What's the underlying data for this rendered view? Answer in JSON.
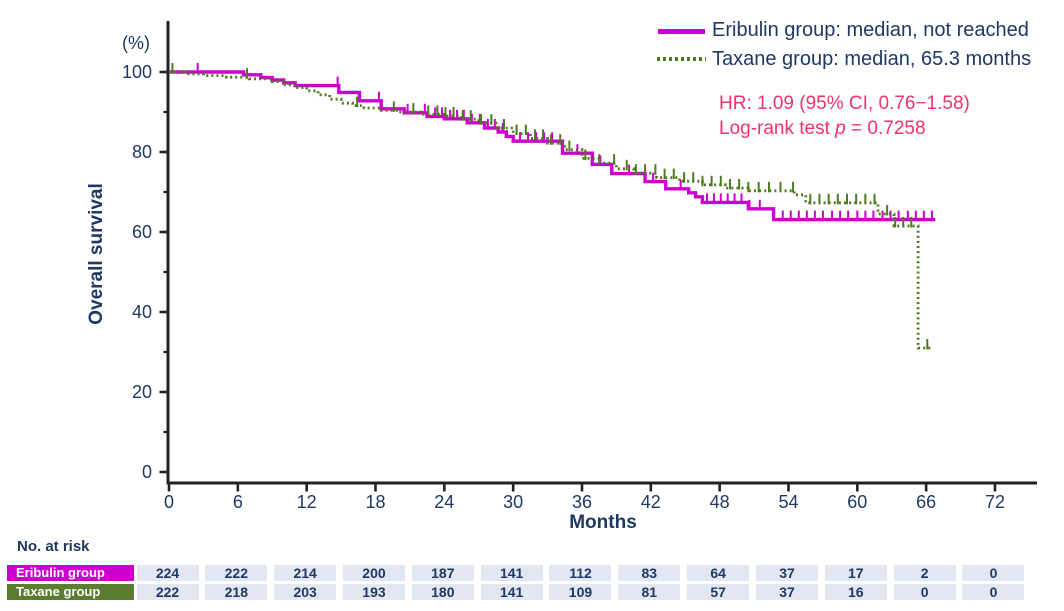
{
  "colors": {
    "eribulin": "#cc00cc",
    "taxane": "#4e7b1f",
    "taxane_pill": "#5b7d2f",
    "navy": "#1f3864",
    "pink": "#f0336b",
    "axis": "#222222",
    "cell_bg": "#e3e7f2"
  },
  "legend": {
    "entries": [
      {
        "label": "Eribulin group: median, not reached",
        "style": "solid"
      },
      {
        "label": "Taxane group: median, 65.3 months",
        "style": "dotted"
      }
    ]
  },
  "annotation": {
    "hr_line": "HR: 1.09 (95% CI, 0.76−1.58)",
    "logrank_prefix": "Log-rank test ",
    "logrank_p": "p",
    "logrank_suffix": " = 0.7258"
  },
  "axes": {
    "y_label": "Overall survival",
    "y_unit": "(%)",
    "x_label": "Months"
  },
  "chart_data": {
    "type": "line",
    "subtype": "kaplan-meier-step",
    "title": "",
    "xlabel": "Months",
    "ylabel": "Overall survival (%)",
    "xlim": [
      0,
      75.7
    ],
    "ylim": [
      0,
      100
    ],
    "x_ticks": [
      0,
      6,
      12,
      18,
      24,
      30,
      36,
      42,
      48,
      54,
      60,
      66,
      72
    ],
    "y_ticks": [
      0,
      20,
      40,
      60,
      80,
      100
    ],
    "y_minor_ticks": [
      10,
      30,
      50,
      70,
      90
    ],
    "grid": false,
    "legend_position": "top-right",
    "series": [
      {
        "name": "Eribulin group",
        "legend_label": "Eribulin group: median, not reached",
        "median": "not reached",
        "color": "#cc00cc",
        "line_style": "solid",
        "steps": [
          [
            0,
            100
          ],
          [
            6.5,
            99.3
          ],
          [
            8,
            98.6
          ],
          [
            9,
            98.0
          ],
          [
            10,
            97.3
          ],
          [
            11,
            96.6
          ],
          [
            14.8,
            94.9
          ],
          [
            16.6,
            92.8
          ],
          [
            18.5,
            90.8
          ],
          [
            20.5,
            89.8
          ],
          [
            22.5,
            88.9
          ],
          [
            24,
            88.3
          ],
          [
            26,
            87.3
          ],
          [
            27.5,
            86.0
          ],
          [
            28.7,
            85.0
          ],
          [
            29.4,
            83.9
          ],
          [
            30,
            82.7
          ],
          [
            34.3,
            79.7
          ],
          [
            36.9,
            76.9
          ],
          [
            38.6,
            74.6
          ],
          [
            41.5,
            72.6
          ],
          [
            43.3,
            70.8
          ],
          [
            45.3,
            69.8
          ],
          [
            45.9,
            68.8
          ],
          [
            46.5,
            67.4
          ],
          [
            50.5,
            65.8
          ],
          [
            52.7,
            63.1
          ],
          [
            66.8,
            63.1
          ]
        ],
        "censor_times": [
          2.5,
          14.7,
          18.3,
          20.8,
          22.3,
          23.2,
          23.8,
          24.5,
          25.1,
          25.7,
          26.4,
          27.1,
          27.8,
          28.4,
          29.1,
          30.6,
          31.3,
          32.0,
          32.7,
          33.4,
          35.6,
          37.6,
          40.1,
          42.2,
          44.6,
          46.9,
          47.5,
          48.1,
          48.7,
          49.3,
          49.9,
          50.6,
          51.5,
          53.5,
          54.2,
          54.9,
          55.6,
          56.3,
          57.0,
          57.8,
          58.5,
          59.2,
          60.0,
          60.7,
          61.4,
          62.2,
          62.9,
          63.6,
          64.4,
          65.1,
          65.8,
          66.5
        ]
      },
      {
        "name": "Taxane group",
        "legend_label": "Taxane group: median, 65.3 months",
        "median": "65.3 months",
        "color": "#4e7b1f",
        "line_style": "dotted",
        "steps": [
          [
            0,
            100
          ],
          [
            1.5,
            99.5
          ],
          [
            3,
            99.1
          ],
          [
            5,
            98.7
          ],
          [
            7,
            98.3
          ],
          [
            9,
            97.6
          ],
          [
            10,
            96.8
          ],
          [
            11,
            96.1
          ],
          [
            12,
            95.3
          ],
          [
            13,
            94.3
          ],
          [
            14,
            93.2
          ],
          [
            15,
            92.2
          ],
          [
            16,
            91.6
          ],
          [
            17,
            91.0
          ],
          [
            18.5,
            90.4
          ],
          [
            20,
            90.0
          ],
          [
            22,
            89.4
          ],
          [
            24,
            89.0
          ],
          [
            25.5,
            88.2
          ],
          [
            27,
            87.2
          ],
          [
            28.5,
            86.0
          ],
          [
            30,
            84.6
          ],
          [
            31.5,
            83.4
          ],
          [
            33,
            82.2
          ],
          [
            34.5,
            80.6
          ],
          [
            36,
            78.4
          ],
          [
            37.5,
            77.2
          ],
          [
            39,
            75.8
          ],
          [
            40.5,
            74.7
          ],
          [
            42.5,
            73.6
          ],
          [
            44.5,
            72.7
          ],
          [
            46.5,
            71.8
          ],
          [
            48.5,
            71.0
          ],
          [
            50.5,
            70.3
          ],
          [
            54.5,
            69.3
          ],
          [
            55.5,
            67.3
          ],
          [
            61.8,
            64.5
          ],
          [
            63.2,
            61.5
          ],
          [
            65.3,
            31.0
          ],
          [
            66.4,
            31.0
          ]
        ],
        "censor_times": [
          0.3,
          6.8,
          16.4,
          19.6,
          21.3,
          22.6,
          23.4,
          24.1,
          24.8,
          25.6,
          26.3,
          27.2,
          28.1,
          29.2,
          30.3,
          31.1,
          31.9,
          32.6,
          33.3,
          34.1,
          34.9,
          36.3,
          37.5,
          38.8,
          39.9,
          40.7,
          41.5,
          42.4,
          43.2,
          44.0,
          44.9,
          45.7,
          46.5,
          47.3,
          48.1,
          48.9,
          49.7,
          50.5,
          51.4,
          52.3,
          53.3,
          54.4,
          55.9,
          56.7,
          57.5,
          58.3,
          59.1,
          59.9,
          60.7,
          61.5,
          62.6,
          63.3,
          64.0,
          64.7,
          66.1
        ]
      }
    ],
    "annotations": [
      "HR: 1.09 (95% CI, 0.76−1.58)",
      "Log-rank test p = 0.7258"
    ]
  },
  "at_risk": {
    "heading": "No. at risk",
    "times": [
      0,
      6,
      12,
      18,
      24,
      30,
      36,
      42,
      48,
      54,
      60,
      66,
      72
    ],
    "rows": [
      {
        "label": "Eribulin group",
        "counts": [
          224,
          222,
          214,
          200,
          187,
          141,
          112,
          83,
          64,
          37,
          17,
          2,
          0
        ]
      },
      {
        "label": "Taxane group",
        "counts": [
          222,
          218,
          203,
          193,
          180,
          141,
          109,
          81,
          57,
          37,
          16,
          0,
          0
        ]
      }
    ]
  }
}
